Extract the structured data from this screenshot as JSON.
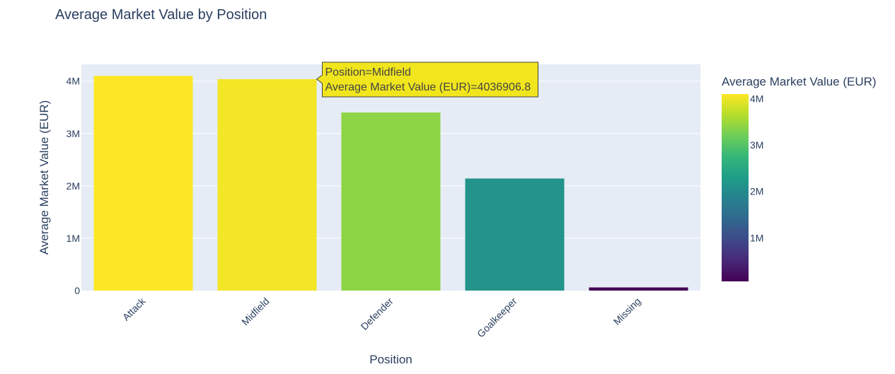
{
  "chart_data": {
    "type": "bar",
    "title": "Average Market Value by Position",
    "xlabel": "Position",
    "ylabel": "Average Market Value (EUR)",
    "categories": [
      "Attack",
      "Midfield",
      "Defender",
      "Goalkeeper",
      "Missing"
    ],
    "values": [
      4100000,
      4036906.8,
      3400000,
      2140000,
      60000
    ],
    "ylim": [
      0,
      4320000
    ],
    "yticks": [
      {
        "value": 0,
        "label": "0"
      },
      {
        "value": 1000000,
        "label": "1M"
      },
      {
        "value": 2000000,
        "label": "2M"
      },
      {
        "value": 3000000,
        "label": "3M"
      },
      {
        "value": 4000000,
        "label": "4M"
      }
    ],
    "grid": true,
    "plot_background": "#e5ecf6",
    "colorbar": {
      "title": "Average Market Value (EUR)",
      "range": [
        60000,
        4100000
      ],
      "ticks": [
        {
          "value": 1000000,
          "label": "1M"
        },
        {
          "value": 2000000,
          "label": "2M"
        },
        {
          "value": 3000000,
          "label": "3M"
        },
        {
          "value": 4000000,
          "label": "4M"
        }
      ],
      "colorscale": [
        "#440154",
        "#482878",
        "#3e4989",
        "#31688e",
        "#26828e",
        "#1f9e89",
        "#35b779",
        "#6ece58",
        "#b5de2b",
        "#fde725"
      ]
    },
    "hover": {
      "category_index": 1,
      "lines": [
        "Position=Midfield",
        "Average Market Value (EUR)=4036906.8"
      ]
    }
  }
}
